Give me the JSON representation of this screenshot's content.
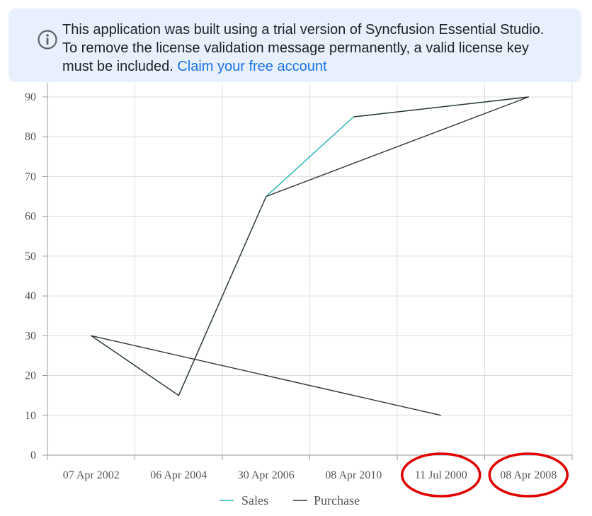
{
  "banner": {
    "icon": "info-icon",
    "line1": "This application was built using a trial version of Syncfusion Essential Studio.",
    "line2": "To remove the license validation message permanently, a valid license key",
    "line3": "must be included.",
    "link_text": "Claim your free account"
  },
  "chart_data": {
    "type": "line",
    "categories": [
      "07 Apr 2002",
      "06 Apr 2004",
      "30 Apr 2006",
      "08 Apr 2010",
      "11 Jul 2000",
      "08 Apr 2008"
    ],
    "series": [
      {
        "name": "Sales",
        "color": "#1fb5ad",
        "points": [
          {
            "x": "07 Apr 2002",
            "y": 30
          },
          {
            "x": "06 Apr 2004",
            "y": 15
          },
          {
            "x": "30 Apr 2006",
            "y": 65
          },
          {
            "x": "08 Apr 2010",
            "y": 85
          },
          {
            "x": "08 Apr 2008",
            "y": 90
          }
        ]
      },
      {
        "name": "Purchase",
        "color": "#333333",
        "points": [
          {
            "x": "11 Jul 2000",
            "y": 10
          },
          {
            "x": "07 Apr 2002",
            "y": 30
          },
          {
            "x": "06 Apr 2004",
            "y": 15
          },
          {
            "x": "30 Apr 2006",
            "y": 65
          },
          {
            "x": "08 Apr 2008",
            "y": 90
          },
          {
            "x": "08 Apr 2010",
            "y": 85
          }
        ]
      }
    ],
    "yticks": [
      0,
      10,
      20,
      30,
      40,
      50,
      60,
      70,
      80,
      90
    ],
    "ylim": [
      0,
      90
    ],
    "grid": true,
    "legend_position": "bottom",
    "highlighted_categories": [
      "11 Jul 2000",
      "08 Apr 2008"
    ],
    "highlight_color": "#e00000"
  }
}
